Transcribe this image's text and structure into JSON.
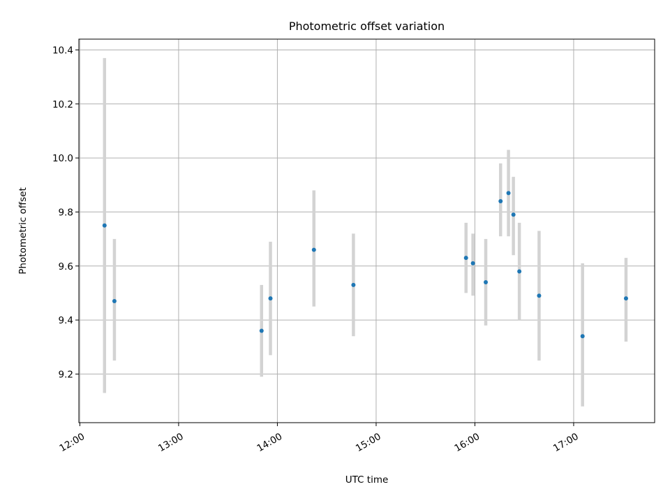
{
  "chart_data": {
    "type": "scatter",
    "title": "Photometric offset variation",
    "xlabel": "UTC time",
    "ylabel": "Photometric offset",
    "x_ticks": [
      {
        "hour": 12.0,
        "label": "12:00"
      },
      {
        "hour": 13.0,
        "label": "13:00"
      },
      {
        "hour": 14.0,
        "label": "14:00"
      },
      {
        "hour": 15.0,
        "label": "15:00"
      },
      {
        "hour": 16.0,
        "label": "16:00"
      },
      {
        "hour": 17.0,
        "label": "17:00"
      }
    ],
    "y_ticks": [
      {
        "value": 9.2,
        "label": "9.2"
      },
      {
        "value": 9.4,
        "label": "9.4"
      },
      {
        "value": 9.6,
        "label": "9.6"
      },
      {
        "value": 9.8,
        "label": "9.8"
      },
      {
        "value": 10.0,
        "label": "10.0"
      },
      {
        "value": 10.2,
        "label": "10.2"
      },
      {
        "value": 10.4,
        "label": "10.4"
      }
    ],
    "xlim_hours": [
      11.99,
      17.82
    ],
    "ylim": [
      9.02,
      10.44
    ],
    "grid": true,
    "marker_color": "#1f77b4",
    "errorbar_color": "#d3d3d3",
    "points": [
      {
        "hour": 12.25,
        "y": 9.75,
        "lo": 9.13,
        "hi": 10.37
      },
      {
        "hour": 12.35,
        "y": 9.47,
        "lo": 9.25,
        "hi": 9.7
      },
      {
        "hour": 13.84,
        "y": 9.36,
        "lo": 9.19,
        "hi": 9.53
      },
      {
        "hour": 13.93,
        "y": 9.48,
        "lo": 9.27,
        "hi": 9.69
      },
      {
        "hour": 14.37,
        "y": 9.66,
        "lo": 9.45,
        "hi": 9.88
      },
      {
        "hour": 14.77,
        "y": 9.53,
        "lo": 9.34,
        "hi": 9.72
      },
      {
        "hour": 15.91,
        "y": 9.63,
        "lo": 9.5,
        "hi": 9.76
      },
      {
        "hour": 15.98,
        "y": 9.61,
        "lo": 9.49,
        "hi": 9.72
      },
      {
        "hour": 16.11,
        "y": 9.54,
        "lo": 9.38,
        "hi": 9.7
      },
      {
        "hour": 16.26,
        "y": 9.84,
        "lo": 9.71,
        "hi": 9.98
      },
      {
        "hour": 16.34,
        "y": 9.87,
        "lo": 9.71,
        "hi": 10.03
      },
      {
        "hour": 16.39,
        "y": 9.79,
        "lo": 9.64,
        "hi": 9.93
      },
      {
        "hour": 16.45,
        "y": 9.58,
        "lo": 9.4,
        "hi": 9.76
      },
      {
        "hour": 16.65,
        "y": 9.49,
        "lo": 9.25,
        "hi": 9.73
      },
      {
        "hour": 17.09,
        "y": 9.34,
        "lo": 9.08,
        "hi": 9.61
      },
      {
        "hour": 17.53,
        "y": 9.48,
        "lo": 9.32,
        "hi": 9.63
      }
    ]
  }
}
